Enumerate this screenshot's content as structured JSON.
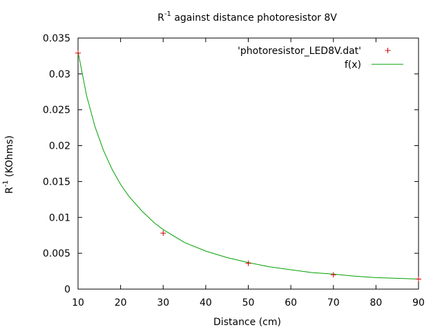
{
  "chart_data": {
    "type": "scatter",
    "title": {
      "prefix": "R",
      "superscript": "-1",
      "suffix": " against distance photoresistor 8V"
    },
    "xlabel": "Distance (cm)",
    "ylabel": {
      "prefix": "R",
      "superscript": "-1",
      "suffix": " (KOhms)"
    },
    "xlim": [
      10,
      90
    ],
    "ylim": [
      0,
      0.035
    ],
    "x_ticks": [
      10,
      20,
      30,
      40,
      50,
      60,
      70,
      80,
      90
    ],
    "x_tick_labels": [
      "10",
      "20",
      "30",
      "40",
      "50",
      "60",
      "70",
      "80",
      "90"
    ],
    "y_ticks": [
      0,
      0.005,
      0.01,
      0.015,
      0.02,
      0.025,
      0.03,
      0.035
    ],
    "y_tick_labels": [
      "0",
      "0.005",
      "0.01",
      "0.015",
      "0.02",
      "0.025",
      "0.03",
      "0.035"
    ],
    "grid": false,
    "legend_position": "top-right",
    "series": [
      {
        "name": "'photoresistor_LED8V.dat'",
        "type": "points",
        "marker": "+",
        "color": "#d00000",
        "x": [
          10,
          30,
          50,
          70,
          90
        ],
        "y": [
          0.0329,
          0.0078,
          0.0036,
          0.002,
          0.0014
        ]
      },
      {
        "name": "f(x)",
        "type": "line",
        "color": "#00a000",
        "x": [
          10,
          12,
          14,
          16,
          18,
          20,
          22,
          25,
          28,
          30,
          35,
          40,
          45,
          50,
          55,
          60,
          65,
          70,
          75,
          80,
          85,
          90
        ],
        "y": [
          0.0331,
          0.027,
          0.0226,
          0.0193,
          0.0167,
          0.0146,
          0.0129,
          0.0109,
          0.0092,
          0.0083,
          0.0065,
          0.0053,
          0.0044,
          0.0037,
          0.0031,
          0.0027,
          0.0023,
          0.0021,
          0.0018,
          0.0016,
          0.0015,
          0.0014
        ]
      }
    ]
  }
}
